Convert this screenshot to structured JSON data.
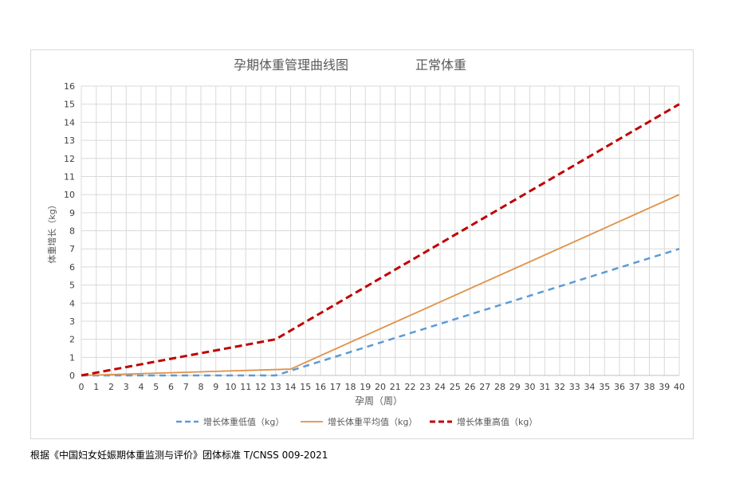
{
  "chart_data": {
    "type": "line",
    "title": "孕期体重管理曲线图",
    "subtitle": "正常体重",
    "xlabel": "孕周（周）",
    "ylabel": "体重增长（kg）",
    "xlim": [
      0,
      40
    ],
    "ylim": [
      0,
      16
    ],
    "x_ticks": [
      0,
      1,
      2,
      3,
      4,
      5,
      6,
      7,
      8,
      9,
      10,
      11,
      12,
      13,
      14,
      15,
      16,
      17,
      18,
      19,
      20,
      21,
      22,
      23,
      24,
      25,
      26,
      27,
      28,
      29,
      30,
      31,
      32,
      33,
      34,
      35,
      36,
      37,
      38,
      39,
      40
    ],
    "y_ticks": [
      0,
      1,
      2,
      3,
      4,
      5,
      6,
      7,
      8,
      9,
      10,
      11,
      12,
      13,
      14,
      15,
      16
    ],
    "grid": true,
    "legend_position": "bottom",
    "series": [
      {
        "name": "增长体重低值（kg）",
        "color": "#5b9bd5",
        "style": "dashed",
        "x": [
          0,
          13,
          40
        ],
        "y": [
          0,
          0,
          7
        ]
      },
      {
        "name": "增长体重平均值（kg）",
        "color": "#e0914a",
        "style": "solid",
        "x": [
          0,
          14,
          40
        ],
        "y": [
          0,
          0.35,
          10
        ]
      },
      {
        "name": "增长体重高值（kg）",
        "color": "#c00000",
        "style": "dashed",
        "x": [
          0,
          13,
          40
        ],
        "y": [
          0,
          2,
          15
        ]
      }
    ]
  },
  "caption": "根据《中国妇女妊娠期体重监测与评价》团体标准 T/CNSS 009-2021"
}
